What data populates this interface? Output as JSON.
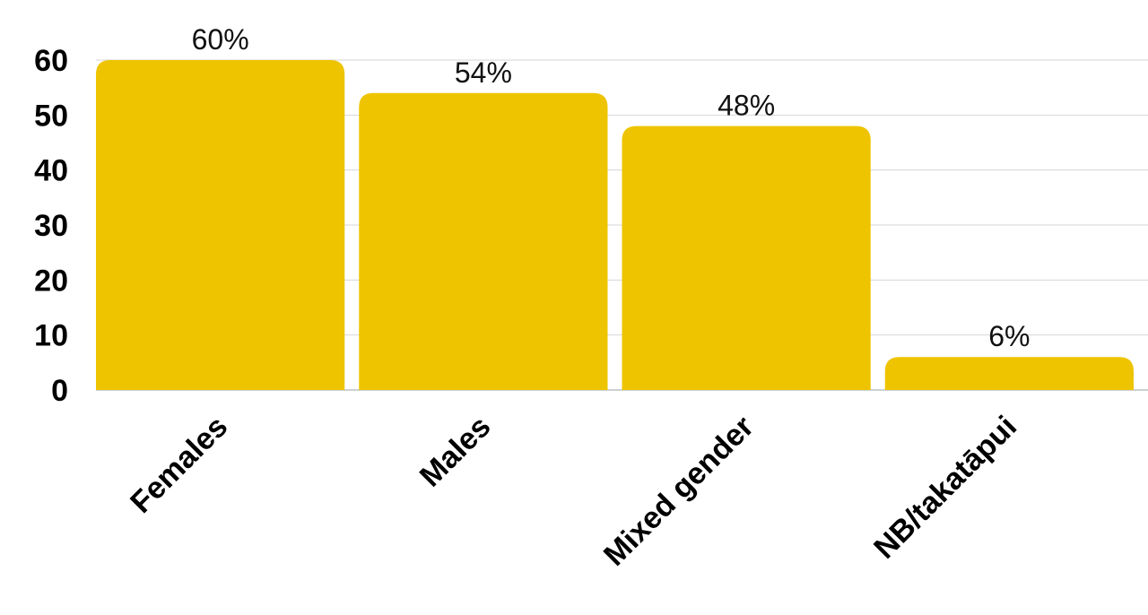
{
  "chart_data": {
    "type": "bar",
    "title": "",
    "xlabel": "",
    "ylabel": "",
    "categories": [
      "Females",
      "Males",
      "Mixed gender",
      "NB/takatāpui"
    ],
    "values": [
      60,
      54,
      48,
      6
    ],
    "data_labels": [
      "60%",
      "54%",
      "48%",
      "6%"
    ],
    "y_ticks": [
      "0",
      "10",
      "20",
      "30",
      "40",
      "50",
      "60"
    ],
    "ylim": [
      0,
      60
    ],
    "grid": true,
    "legend": "none",
    "bar_color": "#eec400"
  }
}
